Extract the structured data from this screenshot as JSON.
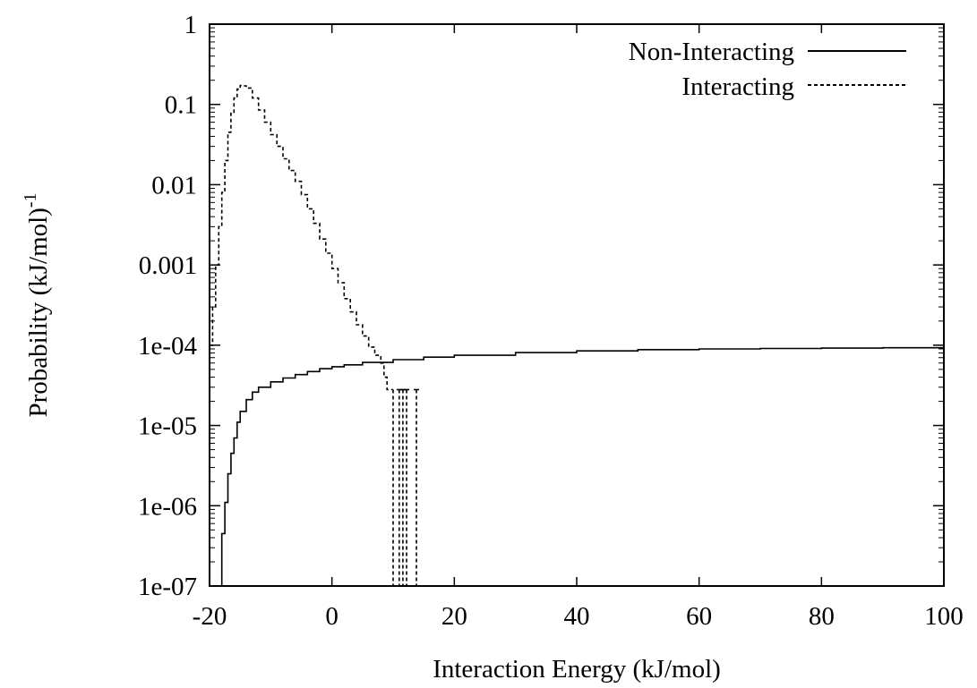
{
  "chart_data": {
    "type": "line",
    "title": "",
    "xlabel": "Interaction Energy (kJ/mol)",
    "ylabel": "Probability (kJ/mol)",
    "ylabel_superscript": "-1",
    "xlim": [
      -20,
      100
    ],
    "ylim": [
      1e-07,
      1
    ],
    "yscale": "log",
    "grid": false,
    "legend_position": "top-right",
    "xticks": [
      -20,
      0,
      20,
      40,
      60,
      80,
      100
    ],
    "xtick_labels": [
      "-20",
      "0",
      "20",
      "40",
      "60",
      "80",
      "100"
    ],
    "yticks": [
      1e-07,
      1e-06,
      1e-05,
      0.0001,
      0.001,
      0.01,
      0.1,
      1
    ],
    "ytick_labels": [
      "1e-07",
      "1e-06",
      "1e-05",
      "1e-04",
      "0.001",
      "0.01",
      "0.1",
      "1"
    ],
    "series": [
      {
        "name": "Non-Interacting",
        "style": "solid",
        "color": "#000000",
        "x": [
          -20,
          -18.5,
          -18,
          -17.5,
          -17,
          -16.5,
          -16,
          -15.5,
          -15,
          -14,
          -13,
          -12,
          -10,
          -8,
          -6,
          -4,
          -2,
          0,
          2,
          5,
          10,
          15,
          20,
          30,
          40,
          50,
          60,
          70,
          80,
          90,
          100
        ],
        "y": [
          1e-07,
          1e-07,
          4.5e-07,
          1.1e-06,
          2.5e-06,
          4.5e-06,
          7e-06,
          1.1e-05,
          1.5e-05,
          2.1e-05,
          2.6e-05,
          3e-05,
          3.5e-05,
          3.9e-05,
          4.3e-05,
          4.7e-05,
          5.1e-05,
          5.4e-05,
          5.7e-05,
          6.1e-05,
          6.6e-05,
          7.1e-05,
          7.5e-05,
          8.1e-05,
          8.5e-05,
          8.8e-05,
          9e-05,
          9.1e-05,
          9.2e-05,
          9.3e-05,
          9.4e-05
        ]
      },
      {
        "name": "Interacting",
        "style": "dashed",
        "color": "#000000",
        "x": [
          -20,
          -19.5,
          -19,
          -18.5,
          -18,
          -17.5,
          -17,
          -16.5,
          -16,
          -15.5,
          -15,
          -14.5,
          -14,
          -13,
          -12,
          -11,
          -10,
          -9,
          -8,
          -7,
          -6,
          -5,
          -4,
          -3,
          -2,
          -1,
          0,
          1,
          2,
          3,
          4,
          5,
          6,
          7,
          8,
          8.5,
          9,
          9.5,
          10
        ],
        "y": [
          0.0001,
          0.0003,
          0.001,
          0.003,
          0.008,
          0.02,
          0.045,
          0.08,
          0.12,
          0.155,
          0.172,
          0.17,
          0.16,
          0.12,
          0.085,
          0.06,
          0.042,
          0.03,
          0.021,
          0.015,
          0.011,
          0.0075,
          0.005,
          0.0033,
          0.0021,
          0.0014,
          0.0009,
          0.0006,
          0.00038,
          0.00026,
          0.00018,
          0.00013,
          9.5e-05,
          7.5e-05,
          6e-05,
          4e-05,
          2.8e-05,
          2.8e-05,
          2.8e-05
        ]
      }
    ],
    "interacting_spikes_x": [
      11,
      11.6,
      12.2,
      13.8
    ]
  }
}
